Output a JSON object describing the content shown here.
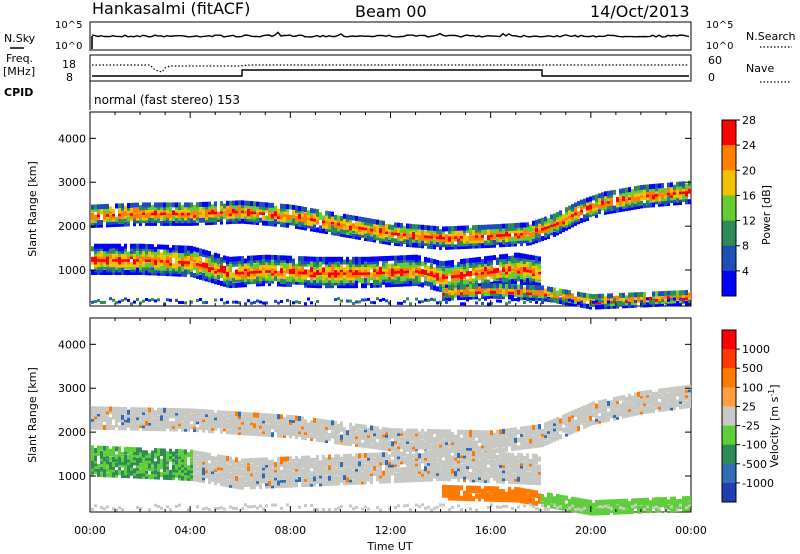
{
  "header": {
    "station": "Hankasalmi (fitACF)",
    "beam": "Beam 00",
    "date": "14/Oct/2013"
  },
  "status_panels": {
    "nsky_label": "N.Sky",
    "nsky_ticks": [
      "10^5",
      "10^0"
    ],
    "nsearch_label": "N.Search",
    "nsearch_ticks": [
      "10^5",
      "10^0"
    ],
    "freq_label_1": "Freq.",
    "freq_label_2": "[MHz]",
    "freq_ticks": [
      "18",
      "8"
    ],
    "nave_label": "Nave",
    "nave_ticks": [
      "60",
      "0"
    ],
    "cpid_label": "CPID",
    "cpid_value": "normal (fast stereo) 153"
  },
  "chart_data": [
    {
      "type": "heatmap",
      "panel": "power",
      "ylabel": "Slant Range [km]",
      "y_ticks": [
        1000,
        2000,
        3000,
        4000
      ],
      "ylim": [
        180,
        4600
      ],
      "x_ticks": [
        "00:00",
        "04:00",
        "08:00",
        "12:00",
        "16:00",
        "20:00",
        "00:00"
      ],
      "xlim_hours": [
        0,
        24
      ],
      "colorbar": {
        "label": "Power [dB]",
        "ticks": [
          "4",
          "8",
          "12",
          "16",
          "20",
          "24",
          "28"
        ],
        "colors": [
          "#0000ff",
          "#1e4fb8",
          "#2e8b57",
          "#66cc33",
          "#f5c000",
          "#ff8000",
          "#ff0000"
        ]
      },
      "echo_bands": [
        {
          "name": "upper",
          "points": [
            [
              0,
              2300
            ],
            [
              2,
              2350
            ],
            [
              4,
              2350
            ],
            [
              6,
              2400
            ],
            [
              8,
              2300
            ],
            [
              10,
              2100
            ],
            [
              12,
              1900
            ],
            [
              14,
              1800
            ],
            [
              16,
              1850
            ],
            [
              17.5,
              1900
            ],
            [
              18.5,
              2100
            ],
            [
              19.5,
              2400
            ],
            [
              20.5,
              2600
            ],
            [
              22,
              2750
            ],
            [
              23,
              2800
            ],
            [
              24,
              2850
            ]
          ]
        },
        {
          "name": "lower",
          "points": [
            [
              0,
              1300
            ],
            [
              2,
              1300
            ],
            [
              4,
              1250
            ],
            [
              5.5,
              1000
            ],
            [
              7,
              1050
            ],
            [
              9,
              1000
            ],
            [
              11,
              1000
            ],
            [
              13,
              1050
            ],
            [
              14,
              900
            ],
            [
              15.5,
              1000
            ],
            [
              17,
              1100
            ],
            [
              18,
              1000
            ]
          ]
        },
        {
          "name": "near",
          "points": [
            [
              14,
              550
            ],
            [
              16,
              600
            ],
            [
              18,
              550
            ],
            [
              20,
              350
            ],
            [
              22,
              400
            ],
            [
              24,
              450
            ]
          ]
        }
      ]
    },
    {
      "type": "heatmap",
      "panel": "velocity",
      "ylabel": "Slant Range [km]",
      "y_ticks": [
        1000,
        2000,
        3000,
        4000
      ],
      "ylim": [
        180,
        4600
      ],
      "x_ticks": [
        "00:00",
        "04:00",
        "08:00",
        "12:00",
        "16:00",
        "20:00",
        "00:00"
      ],
      "xlim_hours": [
        0,
        24
      ],
      "xlabel": "Time UT",
      "colorbar": {
        "label": "Velocity [m s^-1]",
        "ticks": [
          "1000",
          "500",
          "100",
          "25",
          "-25",
          "-100",
          "-500",
          "-1000"
        ],
        "colors": [
          "#1f3fb0",
          "#2f6db5",
          "#2e8b57",
          "#5ecf3a",
          "#c8c8c4",
          "#ffa040",
          "#ff7a00",
          "#ff3a00",
          "#ff0000"
        ]
      },
      "echo_bands": [
        {
          "name": "upper",
          "points": [
            [
              0,
              2400
            ],
            [
              4,
              2350
            ],
            [
              8,
              2200
            ],
            [
              12,
              1900
            ],
            [
              16,
              1850
            ],
            [
              18,
              2000
            ],
            [
              20,
              2500
            ],
            [
              22,
              2750
            ],
            [
              24,
              2900
            ]
          ]
        },
        {
          "name": "lower",
          "points": [
            [
              0,
              1400
            ],
            [
              4,
              1300
            ],
            [
              6,
              1100
            ],
            [
              10,
              1200
            ],
            [
              14,
              1300
            ],
            [
              18,
              1200
            ]
          ]
        },
        {
          "name": "near",
          "points": [
            [
              14,
              700
            ],
            [
              17,
              650
            ],
            [
              20,
              350
            ],
            [
              24,
              450
            ]
          ]
        }
      ]
    }
  ]
}
